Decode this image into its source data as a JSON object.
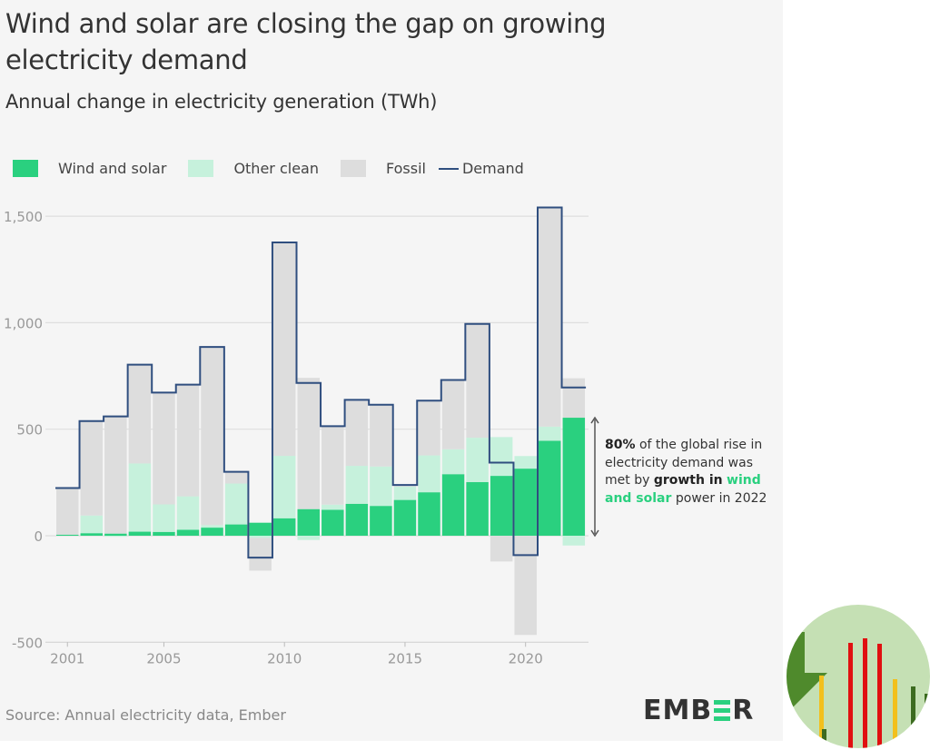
{
  "title": "Wind and solar are closing the gap on growing electricity demand",
  "subtitle": "Annual change in electricity generation (TWh)",
  "legend": [
    {
      "label": "Wind and solar",
      "color": "#2ad07f",
      "kind": "swatch"
    },
    {
      "label": "Other clean",
      "color": "#c6f1dc",
      "kind": "swatch"
    },
    {
      "label": "Fossil",
      "color": "#dddddd",
      "kind": "swatch"
    },
    {
      "label": "Demand",
      "color": "#2f4e7f",
      "kind": "line"
    }
  ],
  "annotation": {
    "pct": "80%",
    "t1": " of the global rise in electricity demand was met by ",
    "bold": "growth in",
    "green": "wind and solar",
    "t2": " power in 2022"
  },
  "source": "Source: Annual electricity data, Ember",
  "logo": {
    "left": "EMB",
    "right": "R"
  },
  "chart_data": {
    "type": "bar",
    "stacked": true,
    "title": "Annual change in electricity generation (TWh)",
    "xlabel": "",
    "ylabel": "TWh",
    "ylim": [
      -500,
      1500
    ],
    "yticks": [
      -500,
      0,
      500,
      1000,
      1500
    ],
    "ytick_labels": [
      "-500",
      "0",
      "500",
      "1,000",
      "1,500"
    ],
    "xtick_labels": [
      "2001",
      "2005",
      "2010",
      "2015",
      "2020"
    ],
    "grid": true,
    "legend_position": "top-left",
    "categories": [
      2001,
      2002,
      2003,
      2004,
      2005,
      2006,
      2007,
      2008,
      2009,
      2010,
      2011,
      2012,
      2013,
      2014,
      2015,
      2016,
      2017,
      2018,
      2019,
      2020,
      2021,
      2022
    ],
    "series": [
      {
        "name": "Wind and solar",
        "color": "#2ad07f",
        "values": [
          5,
          12,
          10,
          19,
          18,
          28,
          38,
          53,
          61,
          82,
          125,
          122,
          150,
          140,
          168,
          204,
          289,
          252,
          281,
          315,
          446,
          554
        ]
      },
      {
        "name": "Other clean",
        "color": "#c6f1dc",
        "values": [
          0,
          83,
          -5,
          320,
          129,
          157,
          12,
          192,
          -10,
          293,
          -20,
          24,
          178,
          185,
          63,
          173,
          117,
          208,
          182,
          59,
          66,
          -46
        ]
      },
      {
        "name": "Fossil",
        "color": "#dddddd",
        "values": [
          219,
          443,
          555,
          464,
          525,
          524,
          836,
          55,
          -154,
          1002,
          616,
          368,
          310,
          290,
          7,
          257,
          325,
          534,
          -121,
          -466,
          1029,
          185
        ]
      },
      {
        "name": "Demand",
        "color": "#2f4e7f",
        "type": "step",
        "values": [
          224,
          538,
          560,
          803,
          672,
          709,
          886,
          300,
          -103,
          1377,
          717,
          514,
          638,
          615,
          238,
          634,
          731,
          994,
          343,
          -91,
          1541,
          696
        ]
      }
    ]
  }
}
